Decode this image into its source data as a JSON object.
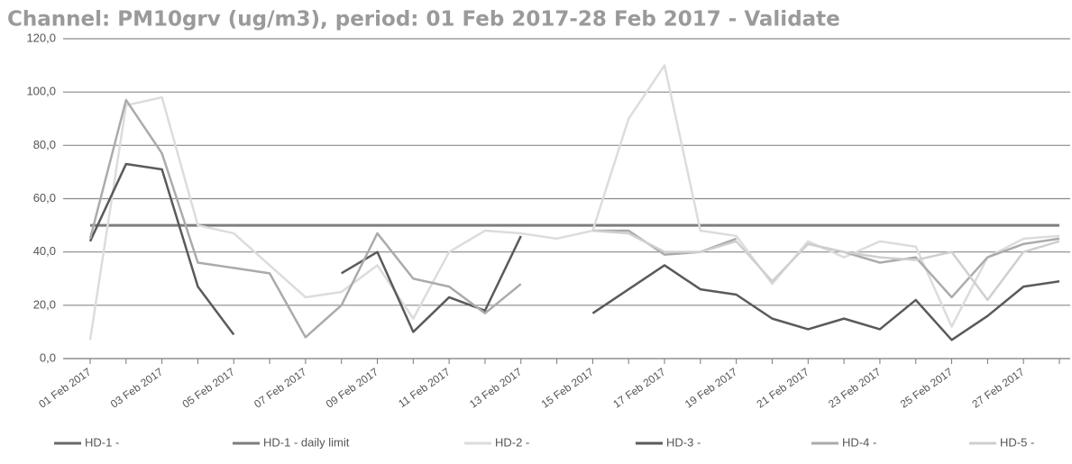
{
  "chart_data": {
    "type": "line",
    "title": "Channel: PM10grv (ug/m3), period: 01 Feb 2017-28 Feb 2017 - Validate",
    "categories": [
      "01 Feb 2017",
      null,
      "03 Feb 2017",
      null,
      "05 Feb 2017",
      null,
      "07 Feb 2017",
      null,
      "09 Feb 2017",
      null,
      "11 Feb 2017",
      null,
      "13 Feb 2017",
      null,
      "15 Feb 2017",
      null,
      "17 Feb 2017",
      null,
      "19 Feb 2017",
      null,
      "21 Feb 2017",
      null,
      "23 Feb 2017",
      null,
      "25 Feb 2017",
      null,
      "27 Feb 2017",
      null
    ],
    "series": [
      {
        "name": "HD-1 -",
        "color": "#6a6a6a",
        "values": [
          null,
          null,
          null,
          null,
          null,
          null,
          null,
          null,
          null,
          null,
          null,
          null,
          null,
          null,
          null,
          null,
          null,
          null,
          null,
          null,
          null,
          null,
          null,
          null,
          null,
          null,
          null,
          null
        ]
      },
      {
        "name": "HD-1 - daily limit",
        "color": "#7d7d7d",
        "values": [
          50,
          50,
          50,
          50,
          50,
          50,
          50,
          50,
          50,
          50,
          50,
          50,
          50,
          50,
          50,
          50,
          50,
          50,
          50,
          50,
          50,
          50,
          50,
          50,
          50,
          50,
          50,
          50
        ]
      },
      {
        "name": "HD-2 -",
        "color": "#dcdcdc",
        "values": [
          7,
          95,
          98,
          50,
          47,
          35,
          23,
          25,
          35,
          15,
          40,
          48,
          47,
          45,
          48,
          90,
          110,
          48,
          46,
          28,
          44,
          38,
          44,
          42,
          12,
          38,
          45,
          46
        ]
      },
      {
        "name": "HD-3 -",
        "color": "#5a5a5a",
        "values": [
          44,
          73,
          71,
          27,
          9,
          null,
          null,
          32,
          40,
          10,
          23,
          18,
          46,
          null,
          17,
          26,
          35,
          26,
          24,
          15,
          11,
          15,
          11,
          22,
          7,
          16,
          27,
          29
        ]
      },
      {
        "name": "HD-4 -",
        "color": "#ababab",
        "values": [
          45,
          97,
          77,
          36,
          34,
          32,
          8,
          20,
          47,
          30,
          27,
          17,
          28,
          null,
          48,
          48,
          39,
          40,
          45,
          null,
          43,
          40,
          36,
          38,
          23,
          38,
          43,
          45
        ]
      },
      {
        "name": "HD-5 -",
        "color": "#cfcfcf",
        "values": [
          null,
          null,
          null,
          null,
          null,
          null,
          null,
          null,
          null,
          null,
          null,
          null,
          null,
          null,
          48,
          47,
          40,
          40,
          44,
          29,
          43,
          40,
          38,
          37,
          40,
          22,
          40,
          44
        ]
      }
    ],
    "ylim": [
      0,
      120
    ],
    "yticks": [
      {
        "value": 0,
        "label": "0,0"
      },
      {
        "value": 20,
        "label": "20,0"
      },
      {
        "value": 40,
        "label": "40,0"
      },
      {
        "value": 60,
        "label": "60,0"
      },
      {
        "value": 80,
        "label": "80,0"
      },
      {
        "value": 100,
        "label": "100,0"
      },
      {
        "value": 120,
        "label": "120,0"
      }
    ],
    "grid": true,
    "legend": "bottom"
  }
}
